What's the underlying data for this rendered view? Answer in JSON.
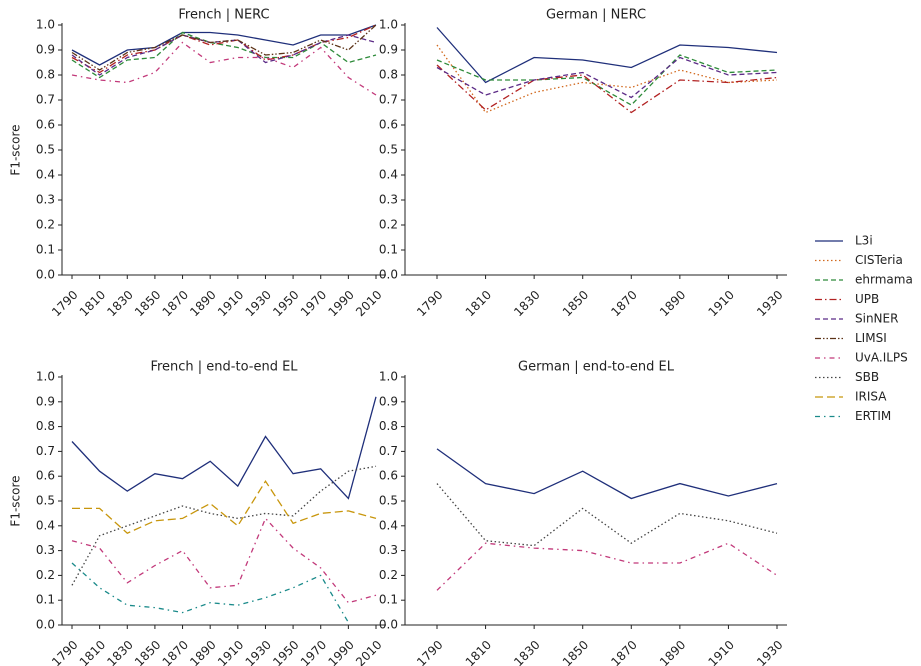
{
  "chart_data": [
    {
      "type": "line",
      "title": "French | NERC",
      "ylabel": "F1-score",
      "categories": [
        1790,
        1810,
        1830,
        1850,
        1870,
        1890,
        1910,
        1930,
        1950,
        1970,
        1990,
        2010
      ],
      "ylim": [
        0,
        1
      ],
      "yticks": [
        {
          "value": 0,
          "label": "0.0"
        },
        0.1,
        0.2,
        0.3,
        0.4,
        0.5,
        0.6,
        0.7,
        0.8,
        0.9,
        {
          "value": 1,
          "label": "1.0"
        }
      ],
      "series": [
        {
          "name": "L3i",
          "color": "#1f2f7a",
          "dash": "solid",
          "values": [
            0.9,
            0.84,
            0.9,
            0.91,
            0.97,
            0.97,
            0.96,
            0.94,
            0.92,
            0.96,
            0.96,
            1.0
          ]
        },
        {
          "name": "ehrmama",
          "color": "#2e8b3a",
          "dash": "dashed",
          "values": [
            0.86,
            0.79,
            0.86,
            0.87,
            0.97,
            0.93,
            0.91,
            0.87,
            0.87,
            0.93,
            0.85,
            0.88
          ]
        },
        {
          "name": "UPB",
          "color": "#b22222",
          "dash": "dashdot",
          "values": [
            0.87,
            0.81,
            0.88,
            0.9,
            0.96,
            0.92,
            0.94,
            0.86,
            0.88,
            0.93,
            0.95,
            1.0
          ]
        },
        {
          "name": "SinNER",
          "color": "#5b2a86",
          "dash": "dashed",
          "values": [
            0.88,
            0.8,
            0.87,
            0.9,
            0.96,
            0.93,
            0.94,
            0.85,
            0.88,
            0.93,
            0.96,
            0.93
          ]
        },
        {
          "name": "LIMSI",
          "color": "#5c3317",
          "dash": "dashdotdot",
          "values": [
            0.89,
            0.82,
            0.89,
            0.91,
            0.96,
            0.93,
            0.94,
            0.88,
            0.89,
            0.94,
            0.9,
            1.0
          ]
        },
        {
          "name": "UvA.ILPS",
          "color": "#c2397a",
          "dash": "loosedashdot",
          "values": [
            0.8,
            0.78,
            0.77,
            0.81,
            0.93,
            0.85,
            0.87,
            0.87,
            0.83,
            0.91,
            0.79,
            0.72
          ]
        }
      ]
    },
    {
      "type": "line",
      "title": "German | NERC",
      "categories": [
        1790,
        1810,
        1830,
        1850,
        1870,
        1890,
        1910,
        1930
      ],
      "ylim": [
        0,
        1
      ],
      "yticks": [
        {
          "value": 0,
          "label": "0.0"
        },
        0.1,
        0.2,
        0.3,
        0.4,
        0.5,
        0.6,
        0.7,
        0.8,
        0.9,
        {
          "value": 1,
          "label": "1.0"
        }
      ],
      "series": [
        {
          "name": "L3i",
          "color": "#1f2f7a",
          "dash": "solid",
          "values": [
            0.99,
            0.77,
            0.87,
            0.86,
            0.83,
            0.92,
            0.91,
            0.89
          ]
        },
        {
          "name": "CISTeria",
          "color": "#d2691e",
          "dash": "dotted",
          "values": [
            0.92,
            0.65,
            0.73,
            0.77,
            0.75,
            0.82,
            0.77,
            0.78
          ]
        },
        {
          "name": "ehrmama",
          "color": "#2e8b3a",
          "dash": "dashed",
          "values": [
            0.86,
            0.78,
            0.78,
            0.79,
            0.68,
            0.88,
            0.81,
            0.82
          ]
        },
        {
          "name": "UPB",
          "color": "#b22222",
          "dash": "dashdot",
          "values": [
            0.84,
            0.66,
            0.78,
            0.8,
            0.65,
            0.78,
            0.77,
            0.79
          ]
        },
        {
          "name": "SinNER",
          "color": "#5b2a86",
          "dash": "dashed",
          "values": [
            0.83,
            0.72,
            0.78,
            0.81,
            0.71,
            0.87,
            0.8,
            0.81
          ]
        }
      ]
    },
    {
      "type": "line",
      "title": "French | end-to-end EL",
      "ylabel": "F1-score",
      "categories": [
        1790,
        1810,
        1830,
        1850,
        1870,
        1890,
        1910,
        1930,
        1950,
        1970,
        1990,
        2010
      ],
      "ylim": [
        0,
        1
      ],
      "yticks": [
        {
          "value": 0,
          "label": "0.0"
        },
        0.1,
        0.2,
        0.3,
        0.4,
        0.5,
        0.6,
        0.7,
        0.8,
        0.9,
        {
          "value": 1,
          "label": "1.0"
        }
      ],
      "series": [
        {
          "name": "L3i",
          "color": "#1f2f7a",
          "dash": "solid",
          "values": [
            0.74,
            0.62,
            0.54,
            0.61,
            0.59,
            0.66,
            0.56,
            0.76,
            0.61,
            0.63,
            0.51,
            0.92
          ]
        },
        {
          "name": "UvA.ILPS",
          "color": "#c2397a",
          "dash": "loosedashdot",
          "values": [
            0.34,
            0.31,
            0.17,
            0.24,
            0.3,
            0.15,
            0.16,
            0.43,
            0.31,
            0.23,
            0.09,
            0.12
          ]
        },
        {
          "name": "SBB",
          "color": "#444444",
          "dash": "dotted",
          "values": [
            0.16,
            0.36,
            0.4,
            0.44,
            0.48,
            0.45,
            0.43,
            0.45,
            0.44,
            0.54,
            0.62,
            0.64
          ]
        },
        {
          "name": "IRISA",
          "color": "#c8960c",
          "dash": "longdash",
          "values": [
            0.47,
            0.47,
            0.37,
            0.42,
            0.43,
            0.49,
            0.4,
            0.58,
            0.41,
            0.45,
            0.46,
            0.43
          ]
        },
        {
          "name": "ERTIM",
          "color": "#1a8a8a",
          "dash": "loosedashdot",
          "values": [
            0.25,
            0.15,
            0.08,
            0.07,
            0.05,
            0.09,
            0.08,
            0.11,
            0.15,
            0.2,
            0.01,
            null
          ]
        }
      ]
    },
    {
      "type": "line",
      "title": "German | end-to-end EL",
      "categories": [
        1790,
        1810,
        1830,
        1850,
        1870,
        1890,
        1910,
        1930
      ],
      "ylim": [
        0,
        1
      ],
      "yticks": [
        {
          "value": 0,
          "label": "0.0"
        },
        0.1,
        0.2,
        0.3,
        0.4,
        0.5,
        0.6,
        0.7,
        0.8,
        0.9,
        {
          "value": 1,
          "label": "1.0"
        }
      ],
      "series": [
        {
          "name": "L3i",
          "color": "#1f2f7a",
          "dash": "solid",
          "values": [
            0.71,
            0.57,
            0.53,
            0.62,
            0.51,
            0.57,
            0.52,
            0.57
          ]
        },
        {
          "name": "SBB",
          "color": "#444444",
          "dash": "dotted",
          "values": [
            0.57,
            0.34,
            0.32,
            0.47,
            0.33,
            0.45,
            0.42,
            0.37
          ]
        },
        {
          "name": "UvA.ILPS",
          "color": "#c2397a",
          "dash": "loosedashdot",
          "values": [
            0.14,
            0.33,
            0.31,
            0.3,
            0.25,
            0.25,
            0.33,
            0.2
          ]
        }
      ]
    }
  ],
  "legend": {
    "entries": [
      {
        "name": "L3i",
        "color": "#1f2f7a",
        "dash": "solid"
      },
      {
        "name": "CISTeria",
        "color": "#d2691e",
        "dash": "dotted"
      },
      {
        "name": "ehrmama",
        "color": "#2e8b3a",
        "dash": "dashed"
      },
      {
        "name": "UPB",
        "color": "#b22222",
        "dash": "dashdot"
      },
      {
        "name": "SinNER",
        "color": "#5b2a86",
        "dash": "dashed"
      },
      {
        "name": "LIMSI",
        "color": "#5c3317",
        "dash": "dashdotdot"
      },
      {
        "name": "UvA.ILPS",
        "color": "#c2397a",
        "dash": "loosedashdot"
      },
      {
        "name": "SBB",
        "color": "#444444",
        "dash": "dotted"
      },
      {
        "name": "IRISA",
        "color": "#c8960c",
        "dash": "longdash"
      },
      {
        "name": "ERTIM",
        "color": "#1a8a8a",
        "dash": "loosedashdot"
      }
    ]
  }
}
